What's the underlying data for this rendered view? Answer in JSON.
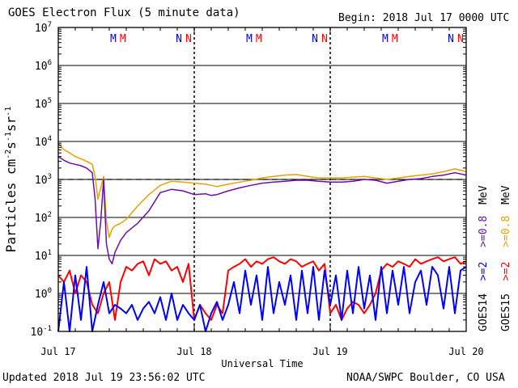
{
  "header": {
    "title": "GOES Electron Flux (5 minute data)",
    "begin": "Begin: 2018 Jul 17 0000 UTC"
  },
  "footer": {
    "updated": "Updated 2018 Jul 19 23:56:02 UTC",
    "credit": "NOAA/SWPC Boulder, CO USA"
  },
  "chart_data": {
    "type": "line",
    "xlabel": "Universal Time",
    "ylabel_parts": [
      "Particles cm",
      "-2",
      "s",
      "-1",
      "sr",
      "-1"
    ],
    "x_ticks": [
      "Jul 17",
      "Jul 18",
      "Jul 19",
      "Jul 20"
    ],
    "x_range_hours": [
      0,
      72
    ],
    "y_scale": "log",
    "ylim": [
      0.1,
      10000000
    ],
    "y_ticks": [
      {
        "base": "10",
        "exp": "7"
      },
      {
        "base": "10",
        "exp": "6"
      },
      {
        "base": "10",
        "exp": "5"
      },
      {
        "base": "10",
        "exp": "4"
      },
      {
        "base": "10",
        "exp": "3"
      },
      {
        "base": "10",
        "exp": "2"
      },
      {
        "base": "10",
        "exp": "1"
      },
      {
        "base": "10",
        "exp": "0"
      },
      {
        "base": "10",
        "exp": "-1"
      }
    ],
    "threshold_line": 1000,
    "markers": [
      {
        "hour": 9.7,
        "text": "M",
        "color": "#0000ff"
      },
      {
        "hour": 11.4,
        "text": "M",
        "color": "#ff0000"
      },
      {
        "hour": 21.3,
        "text": "N",
        "color": "#0000ff"
      },
      {
        "hour": 23.0,
        "text": "N",
        "color": "#ff0000"
      },
      {
        "hour": 33.7,
        "text": "M",
        "color": "#0000ff"
      },
      {
        "hour": 35.4,
        "text": "M",
        "color": "#ff0000"
      },
      {
        "hour": 45.3,
        "text": "N",
        "color": "#0000ff"
      },
      {
        "hour": 47.0,
        "text": "N",
        "color": "#ff0000"
      },
      {
        "hour": 57.7,
        "text": "M",
        "color": "#0000ff"
      },
      {
        "hour": 59.4,
        "text": "M",
        "color": "#ff0000"
      },
      {
        "hour": 69.3,
        "text": "N",
        "color": "#0000ff"
      },
      {
        "hour": 71.0,
        "text": "N",
        "color": "#ff0000"
      }
    ],
    "legend": {
      "goes14": {
        "label": "GOES14",
        "ge2": ">=2",
        "ge08": ">=0.8",
        "unit": "MeV"
      },
      "goes15": {
        "label": "GOES15",
        "ge2": ">=2",
        "ge08": ">=0.8",
        "unit": "MeV"
      }
    },
    "series": [
      {
        "name": "GOES14 >=0.8 MeV",
        "color": "#6a0dad",
        "x": [
          0,
          1,
          2,
          3,
          4,
          5,
          6,
          6.5,
          7,
          7.5,
          8,
          8.5,
          9,
          9.5,
          10,
          11,
          12,
          14,
          16,
          18,
          20,
          22,
          24,
          26,
          27,
          28,
          30,
          32,
          34,
          36,
          38,
          40,
          42,
          44,
          46,
          48,
          50,
          52,
          54,
          56,
          58,
          60,
          62,
          64,
          66,
          68,
          70,
          72
        ],
        "y": [
          4000,
          3200,
          2700,
          2500,
          2300,
          2000,
          1500,
          300,
          15,
          80,
          1000,
          20,
          8,
          6,
          12,
          25,
          40,
          70,
          150,
          450,
          550,
          500,
          400,
          420,
          380,
          400,
          500,
          600,
          700,
          800,
          850,
          900,
          950,
          950,
          900,
          850,
          850,
          900,
          1000,
          950,
          800,
          900,
          1000,
          1050,
          1200,
          1300,
          1500,
          1300
        ]
      },
      {
        "name": "GOES15 >=0.8 MeV",
        "color": "#e8a000",
        "x": [
          0,
          1,
          2,
          3,
          4,
          5,
          6,
          6.5,
          7,
          7.5,
          8,
          8.5,
          9,
          9.5,
          10,
          11,
          12,
          14,
          16,
          18,
          20,
          22,
          24,
          26,
          27,
          28,
          30,
          32,
          34,
          36,
          38,
          40,
          42,
          44,
          46,
          48,
          50,
          52,
          54,
          56,
          58,
          60,
          62,
          64,
          66,
          68,
          70,
          72
        ],
        "y": [
          9000,
          6000,
          5000,
          4000,
          3500,
          3000,
          2500,
          1200,
          300,
          600,
          1200,
          80,
          30,
          50,
          60,
          70,
          90,
          200,
          400,
          700,
          900,
          850,
          800,
          750,
          700,
          650,
          750,
          850,
          950,
          1100,
          1200,
          1300,
          1350,
          1200,
          1100,
          1100,
          1100,
          1150,
          1200,
          1100,
          1000,
          1100,
          1200,
          1300,
          1400,
          1600,
          1900,
          1600
        ]
      },
      {
        "name": "GOES14 >=2 MeV",
        "color": "#0000ff",
        "x": [
          0,
          1,
          2,
          3,
          4,
          5,
          6,
          7,
          8,
          9,
          10,
          11,
          12,
          13,
          14,
          15,
          16,
          17,
          18,
          19,
          20,
          21,
          22,
          23,
          24,
          25,
          26,
          27,
          28,
          29,
          30,
          31,
          32,
          33,
          34,
          35,
          36,
          37,
          38,
          39,
          40,
          41,
          42,
          43,
          44,
          45,
          46,
          47,
          48,
          49,
          50,
          51,
          52,
          53,
          54,
          55,
          56,
          57,
          58,
          59,
          60,
          61,
          62,
          63,
          64,
          65,
          66,
          67,
          68,
          69,
          70,
          71,
          72
        ],
        "y": [
          0.1,
          2,
          0.1,
          3,
          0.2,
          5,
          0.1,
          0.5,
          2,
          0.3,
          0.5,
          0.4,
          0.3,
          0.5,
          0.2,
          0.4,
          0.6,
          0.3,
          0.8,
          0.2,
          1,
          0.2,
          0.5,
          0.3,
          0.2,
          0.5,
          0.1,
          0.3,
          0.6,
          0.2,
          0.5,
          2,
          0.3,
          4,
          0.5,
          3,
          0.2,
          5,
          0.3,
          2,
          0.5,
          3,
          0.2,
          4,
          0.3,
          5,
          0.2,
          4,
          0.5,
          3,
          0.2,
          4,
          0.3,
          5,
          0.4,
          3,
          0.2,
          5,
          0.3,
          4,
          0.5,
          5,
          0.3,
          2,
          4,
          0.5,
          5,
          3,
          0.4,
          5,
          0.3,
          4,
          5
        ]
      },
      {
        "name": "GOES15 >=2 MeV",
        "color": "#ff0000",
        "x": [
          0,
          1,
          2,
          3,
          4,
          5,
          6,
          7,
          8,
          9,
          10,
          11,
          12,
          13,
          14,
          15,
          16,
          17,
          18,
          19,
          20,
          21,
          22,
          23,
          24,
          25,
          26,
          27,
          28,
          29,
          30,
          31,
          32,
          33,
          34,
          35,
          36,
          37,
          38,
          39,
          40,
          41,
          42,
          43,
          44,
          45,
          46,
          47,
          48,
          49,
          50,
          51,
          52,
          53,
          54,
          55,
          56,
          57,
          58,
          59,
          60,
          61,
          62,
          63,
          64,
          65,
          66,
          67,
          68,
          69,
          70,
          71,
          72
        ],
        "y": [
          3,
          2,
          4,
          1,
          3,
          2,
          0.5,
          0.3,
          1,
          2,
          0.2,
          2,
          5,
          4,
          6,
          7,
          3,
          8,
          6,
          7,
          4,
          5,
          2,
          6,
          0.2,
          0.5,
          0.3,
          0.2,
          0.5,
          0.3,
          4,
          5,
          6,
          8,
          5,
          7,
          6,
          8,
          9,
          7,
          6,
          8,
          7,
          5,
          6,
          7,
          4,
          6,
          0.3,
          0.5,
          0.2,
          0.4,
          0.6,
          0.5,
          0.3,
          0.5,
          1,
          4,
          6,
          5,
          7,
          6,
          5,
          8,
          6,
          7,
          8,
          9,
          7,
          8,
          9,
          6,
          7
        ]
      }
    ]
  }
}
